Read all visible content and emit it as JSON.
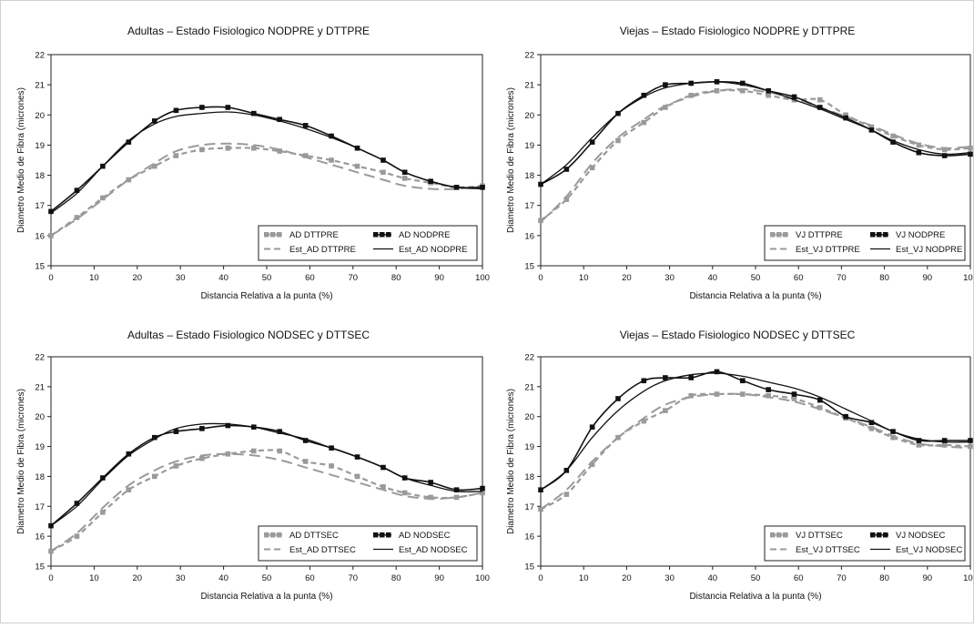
{
  "chart_data": [
    {
      "type": "line",
      "title": "Adultas – Estado Fisiologico NODPRE y DTTPRE",
      "xlabel": "Distancia Relativa a la punta (%)",
      "ylabel": "Diametro Medio de Fibra (micrones)",
      "xlim": [
        0,
        100
      ],
      "ylim": [
        15,
        22
      ],
      "xticks": [
        "0",
        "10",
        "20",
        "30",
        "40",
        "50",
        "60",
        "70",
        "80",
        "90",
        "100"
      ],
      "yticks": [
        "15",
        "16",
        "17",
        "18",
        "19",
        "20",
        "21",
        "22"
      ],
      "legend_position": "bottom-right",
      "x": [
        0,
        6,
        12,
        18,
        24,
        29,
        35,
        41,
        47,
        53,
        59,
        65,
        71,
        77,
        82,
        88,
        94,
        100
      ],
      "series": [
        {
          "name": "AD DTTPRE",
          "kind": "observed",
          "dash": true,
          "color": "#9a9a9a",
          "values": [
            16.0,
            16.6,
            17.25,
            17.85,
            18.3,
            18.65,
            18.85,
            18.9,
            18.9,
            18.8,
            18.65,
            18.5,
            18.3,
            18.1,
            17.9,
            17.75,
            17.6,
            17.65
          ]
        },
        {
          "name": "Est_AD DTTPRE",
          "kind": "estimated",
          "dash": true,
          "color": "#9a9a9a",
          "values": [
            16.0,
            16.55,
            17.2,
            17.85,
            18.4,
            18.8,
            19.0,
            19.05,
            19.0,
            18.85,
            18.6,
            18.35,
            18.1,
            17.85,
            17.65,
            17.55,
            17.55,
            17.65
          ]
        },
        {
          "name": "AD NODPRE",
          "kind": "observed",
          "dash": false,
          "color": "#111111",
          "values": [
            16.8,
            17.5,
            18.3,
            19.1,
            19.8,
            20.15,
            20.25,
            20.25,
            20.05,
            19.85,
            19.65,
            19.3,
            18.9,
            18.5,
            18.1,
            17.8,
            17.6,
            17.6
          ]
        },
        {
          "name": "Est_AD NODPRE",
          "kind": "estimated",
          "dash": false,
          "color": "#111111",
          "values": [
            16.75,
            17.4,
            18.3,
            19.15,
            19.7,
            19.95,
            20.05,
            20.1,
            20.0,
            19.8,
            19.55,
            19.25,
            18.9,
            18.5,
            18.1,
            17.8,
            17.6,
            17.55
          ]
        }
      ]
    },
    {
      "type": "line",
      "title": "Viejas – Estado Fisiologico NODPRE y DTTPRE",
      "xlabel": "Distancia Relativa a la punta (%)",
      "ylabel": "Diametro Medio de Fibra (micrones)",
      "xlim": [
        0,
        100
      ],
      "ylim": [
        15,
        22
      ],
      "xticks": [
        "0",
        "10",
        "20",
        "30",
        "40",
        "50",
        "60",
        "70",
        "80",
        "90",
        "100"
      ],
      "yticks": [
        "15",
        "16",
        "17",
        "18",
        "19",
        "20",
        "21",
        "22"
      ],
      "legend_position": "bottom-right",
      "x": [
        0,
        6,
        12,
        18,
        24,
        29,
        35,
        41,
        47,
        53,
        59,
        65,
        71,
        77,
        82,
        88,
        94,
        100
      ],
      "series": [
        {
          "name": "VJ DTTPRE",
          "kind": "observed",
          "dash": true,
          "color": "#9a9a9a",
          "values": [
            16.5,
            17.2,
            18.25,
            19.15,
            19.75,
            20.25,
            20.65,
            20.8,
            20.8,
            20.65,
            20.5,
            20.5,
            20.0,
            19.6,
            19.3,
            19.0,
            18.85,
            18.9
          ]
        },
        {
          "name": "Est_VJ DTTPRE",
          "kind": "estimated",
          "dash": true,
          "color": "#9a9a9a",
          "values": [
            16.45,
            17.3,
            18.4,
            19.25,
            19.85,
            20.3,
            20.6,
            20.8,
            20.85,
            20.75,
            20.55,
            20.25,
            19.95,
            19.65,
            19.35,
            19.05,
            18.9,
            18.95
          ]
        },
        {
          "name": "VJ NODPRE",
          "kind": "observed",
          "dash": false,
          "color": "#111111",
          "values": [
            17.7,
            18.2,
            19.1,
            20.05,
            20.65,
            21.0,
            21.05,
            21.1,
            21.05,
            20.8,
            20.6,
            20.25,
            19.9,
            19.5,
            19.1,
            18.75,
            18.65,
            18.7
          ]
        },
        {
          "name": "Est_VJ NODPRE",
          "kind": "estimated",
          "dash": false,
          "color": "#111111",
          "values": [
            17.7,
            18.35,
            19.25,
            20.05,
            20.6,
            20.9,
            21.05,
            21.1,
            21.0,
            20.8,
            20.5,
            20.2,
            19.85,
            19.5,
            19.15,
            18.85,
            18.7,
            18.75
          ]
        }
      ]
    },
    {
      "type": "line",
      "title": "Adultas – Estado Fisiologico NODSEC y DTTSEC",
      "xlabel": "Distancia Relativa a la punta (%)",
      "ylabel": "Diametro Medio de Fibra (micrones)",
      "xlim": [
        0,
        100
      ],
      "ylim": [
        15,
        22
      ],
      "xticks": [
        "0",
        "10",
        "20",
        "30",
        "40",
        "50",
        "60",
        "70",
        "80",
        "90",
        "100"
      ],
      "yticks": [
        "15",
        "16",
        "17",
        "18",
        "19",
        "20",
        "21",
        "22"
      ],
      "legend_position": "bottom-right",
      "x": [
        0,
        6,
        12,
        18,
        24,
        29,
        35,
        41,
        47,
        53,
        59,
        65,
        71,
        77,
        82,
        88,
        94,
        100
      ],
      "series": [
        {
          "name": "AD DTTSEC",
          "kind": "observed",
          "dash": true,
          "color": "#9a9a9a",
          "values": [
            15.5,
            16.0,
            16.8,
            17.55,
            18.0,
            18.35,
            18.6,
            18.75,
            18.85,
            18.85,
            18.5,
            18.35,
            18.0,
            17.65,
            17.45,
            17.3,
            17.3,
            17.45
          ]
        },
        {
          "name": "Est_AD DTTSEC",
          "kind": "estimated",
          "dash": true,
          "color": "#9a9a9a",
          "values": [
            15.5,
            16.1,
            16.95,
            17.7,
            18.2,
            18.5,
            18.7,
            18.75,
            18.7,
            18.55,
            18.3,
            18.05,
            17.8,
            17.55,
            17.35,
            17.25,
            17.3,
            17.45
          ]
        },
        {
          "name": "AD NODSEC",
          "kind": "observed",
          "dash": false,
          "color": "#111111",
          "values": [
            16.35,
            17.1,
            17.95,
            18.75,
            19.3,
            19.5,
            19.6,
            19.7,
            19.65,
            19.5,
            19.2,
            18.95,
            18.65,
            18.3,
            17.95,
            17.8,
            17.55,
            17.6
          ]
        },
        {
          "name": "Est_AD NODSEC",
          "kind": "estimated",
          "dash": false,
          "color": "#111111",
          "values": [
            16.35,
            17.0,
            17.9,
            18.7,
            19.25,
            19.6,
            19.75,
            19.75,
            19.65,
            19.45,
            19.25,
            18.95,
            18.65,
            18.3,
            17.95,
            17.7,
            17.5,
            17.5
          ]
        }
      ]
    },
    {
      "type": "line",
      "title": "Viejas – Estado Fisiologico NODSEC y DTTSEC",
      "xlabel": "Distancia Relativa a la punta (%)",
      "ylabel": "Diametro Medio de Fibra (micrones)",
      "xlim": [
        0,
        100
      ],
      "ylim": [
        15,
        22
      ],
      "xticks": [
        "0",
        "10",
        "20",
        "30",
        "40",
        "50",
        "60",
        "70",
        "80",
        "90",
        "100"
      ],
      "yticks": [
        "15",
        "16",
        "17",
        "18",
        "19",
        "20",
        "21",
        "22"
      ],
      "legend_position": "bottom-right",
      "x": [
        0,
        6,
        12,
        18,
        24,
        29,
        35,
        41,
        47,
        53,
        59,
        65,
        71,
        77,
        82,
        88,
        94,
        100
      ],
      "series": [
        {
          "name": "VJ DTTSEC",
          "kind": "observed",
          "dash": true,
          "color": "#9a9a9a",
          "values": [
            16.9,
            17.4,
            18.4,
            19.3,
            19.85,
            20.2,
            20.7,
            20.75,
            20.75,
            20.7,
            20.6,
            20.3,
            19.95,
            19.6,
            19.3,
            19.05,
            19.05,
            19.0
          ]
        },
        {
          "name": "Est_VJ DTTSEC",
          "kind": "estimated",
          "dash": true,
          "color": "#9a9a9a",
          "values": [
            16.9,
            17.55,
            18.5,
            19.3,
            19.95,
            20.4,
            20.65,
            20.75,
            20.75,
            20.65,
            20.5,
            20.25,
            19.95,
            19.65,
            19.35,
            19.1,
            19.0,
            18.95
          ]
        },
        {
          "name": "VJ NODSEC",
          "kind": "observed",
          "dash": false,
          "color": "#111111",
          "values": [
            17.55,
            18.2,
            19.65,
            20.6,
            21.2,
            21.3,
            21.3,
            21.5,
            21.2,
            20.9,
            20.75,
            20.55,
            20.0,
            19.8,
            19.5,
            19.2,
            19.2,
            19.2
          ]
        },
        {
          "name": "Est_VJ NODSEC",
          "kind": "estimated",
          "dash": false,
          "color": "#111111",
          "values": [
            17.55,
            18.2,
            19.3,
            20.2,
            20.85,
            21.2,
            21.4,
            21.45,
            21.35,
            21.15,
            20.95,
            20.65,
            20.25,
            19.85,
            19.5,
            19.25,
            19.15,
            19.15
          ]
        }
      ]
    }
  ]
}
